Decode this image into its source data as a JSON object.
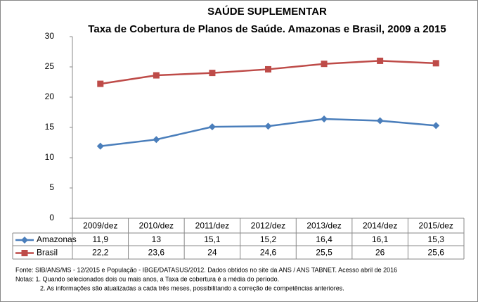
{
  "chart_data": {
    "type": "line",
    "title": "SAÚDE SUPLEMENTAR",
    "subtitle": "Taxa de Cobertura de Planos de Saúde. Amazonas e Brasil, 2009 a 2015",
    "categories": [
      "2009/dez",
      "2010/dez",
      "2011/dez",
      "2012/dez",
      "2013/dez",
      "2014/dez",
      "2015/dez"
    ],
    "series": [
      {
        "name": "Amazonas",
        "color": "#4a7ebb",
        "marker": "diamond",
        "values": [
          11.9,
          13,
          15.1,
          15.2,
          16.4,
          16.1,
          15.3
        ],
        "value_labels": [
          "11,9",
          "13",
          "15,1",
          "15,2",
          "16,4",
          "16,1",
          "15,3"
        ]
      },
      {
        "name": "Brasil",
        "color": "#be4b48",
        "marker": "square",
        "values": [
          22.2,
          23.6,
          24,
          24.6,
          25.5,
          26,
          25.6
        ],
        "value_labels": [
          "22,2",
          "23,6",
          "24",
          "24,6",
          "25,5",
          "26",
          "25,6"
        ]
      }
    ],
    "ylim": [
      0,
      30
    ],
    "yticks": [
      0,
      5,
      10,
      15,
      20,
      25,
      30
    ],
    "grid": false,
    "notes": [
      "Fonte:  SIB/ANS/MS - 12/2015 e População - IBGE/DATASUS/2012. Dados obtidos no site da ANS / ANS TABNET. Acesso abril de 2016",
      "Notas: 1. Quando selecionados dois ou mais anos, a Taxa de cobertura é a média do período.",
      "2. As informações são atualizadas a cada três meses, possibilitando a correção de competências anteriores."
    ]
  }
}
